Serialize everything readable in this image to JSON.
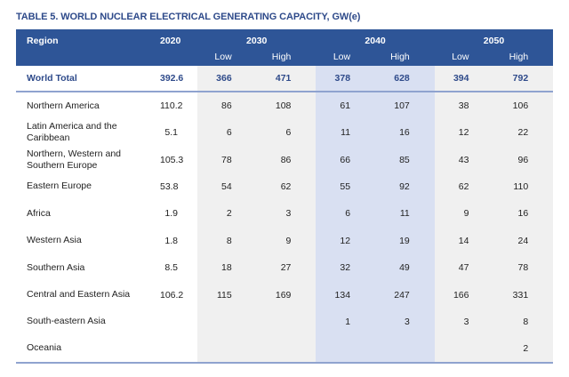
{
  "title": "TABLE 5. WORLD NUCLEAR ELECTRICAL GENERATING CAPACITY, GW(e)",
  "header": {
    "region": "Region",
    "years": [
      "2020",
      "2030",
      "2040",
      "2050"
    ],
    "sub": [
      "Low",
      "High",
      "Low",
      "High",
      "Low",
      "High"
    ]
  },
  "total": {
    "region": "World Total",
    "values": [
      "392.6",
      "366",
      "471",
      "378",
      "628",
      "394",
      "792"
    ]
  },
  "rows": [
    {
      "region": "Northern America",
      "values": [
        "110.2",
        "86",
        "108",
        "61",
        "107",
        "38",
        "106"
      ]
    },
    {
      "region": "Latin America and the Caribbean",
      "values": [
        "5.1",
        "6",
        "6",
        "11",
        "16",
        "12",
        "22"
      ]
    },
    {
      "region": "Northern, Western and Southern Europe",
      "values": [
        "105.3",
        "78",
        "86",
        "66",
        "85",
        "43",
        "96"
      ]
    },
    {
      "region": "Eastern Europe",
      "values": [
        "53.8",
        "54",
        "62",
        "55",
        "92",
        "62",
        "110"
      ]
    },
    {
      "region": "Africa",
      "values": [
        "1.9",
        "2",
        "3",
        "6",
        "11",
        "9",
        "16"
      ]
    },
    {
      "region": "Western Asia",
      "values": [
        "1.8",
        "8",
        "9",
        "12",
        "19",
        "14",
        "24"
      ]
    },
    {
      "region": "Southern Asia",
      "values": [
        "8.5",
        "18",
        "27",
        "32",
        "49",
        "47",
        "78"
      ]
    },
    {
      "region": "Central and Eastern Asia",
      "values": [
        "106.2",
        "115",
        "169",
        "134",
        "247",
        "166",
        "331"
      ]
    },
    {
      "region": "South-eastern Asia",
      "values": [
        "",
        "",
        "",
        "1",
        "3",
        "3",
        "8"
      ]
    },
    {
      "region": "Oceania",
      "values": [
        "",
        "",
        "",
        "",
        "",
        "",
        "2"
      ]
    }
  ],
  "colors": {
    "header": "#2e5597",
    "accent_text": "#2e4a8a",
    "shade_gray": "#f0f0f0",
    "shade_blue": "#d9e0f2"
  }
}
